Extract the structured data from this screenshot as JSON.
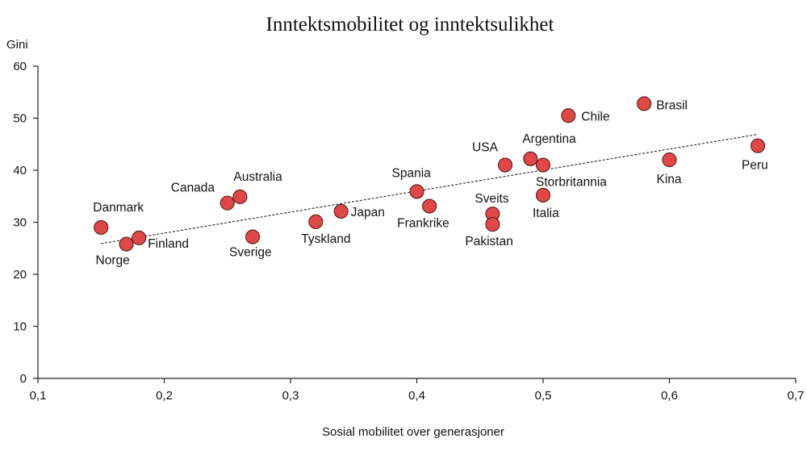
{
  "chart_data": {
    "type": "scatter",
    "title": "Inntektsmobilitet og inntektsulikhet",
    "xlabel": "Sosial mobilitet over generasjoner",
    "ylabel": "Gini",
    "xlim": [
      0.1,
      0.7
    ],
    "ylim": [
      0,
      60
    ],
    "x_ticks": [
      "0,1",
      "0,2",
      "0,3",
      "0,4",
      "0,5",
      "0,6",
      "0,7"
    ],
    "y_ticks": [
      "0",
      "10",
      "20",
      "30",
      "40",
      "50",
      "60"
    ],
    "grid": false,
    "marker_color": "#e04848",
    "points": [
      {
        "label": "Danmark",
        "x": 0.15,
        "y": 29.0
      },
      {
        "label": "Norge",
        "x": 0.17,
        "y": 25.8
      },
      {
        "label": "Finland",
        "x": 0.18,
        "y": 27.0
      },
      {
        "label": "Canada",
        "x": 0.25,
        "y": 33.7
      },
      {
        "label": "Australia",
        "x": 0.26,
        "y": 34.9
      },
      {
        "label": "Sverige",
        "x": 0.27,
        "y": 27.2
      },
      {
        "label": "Tyskland",
        "x": 0.32,
        "y": 30.1
      },
      {
        "label": "Japan",
        "x": 0.34,
        "y": 32.1
      },
      {
        "label": "Spania",
        "x": 0.4,
        "y": 35.9
      },
      {
        "label": "Frankrike",
        "x": 0.41,
        "y": 33.1
      },
      {
        "label": "Sveits",
        "x": 0.46,
        "y": 31.6
      },
      {
        "label": "Pakistan",
        "x": 0.46,
        "y": 29.6
      },
      {
        "label": "USA",
        "x": 0.47,
        "y": 41.0
      },
      {
        "label": "Argentina",
        "x": 0.49,
        "y": 42.2
      },
      {
        "label": "Storbritannia",
        "x": 0.5,
        "y": 41.0
      },
      {
        "label": "Italia",
        "x": 0.5,
        "y": 35.2
      },
      {
        "label": "Chile",
        "x": 0.52,
        "y": 50.5
      },
      {
        "label": "Brasil",
        "x": 0.58,
        "y": 52.8
      },
      {
        "label": "Kina",
        "x": 0.6,
        "y": 42.0
      },
      {
        "label": "Peru",
        "x": 0.67,
        "y": 44.7
      }
    ],
    "trendline": {
      "x": [
        0.15,
        0.67
      ],
      "y": [
        25.9,
        46.9
      ]
    }
  }
}
